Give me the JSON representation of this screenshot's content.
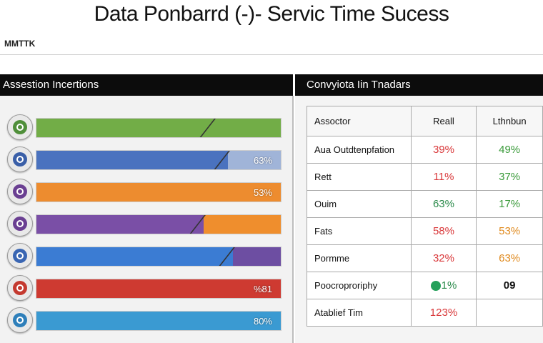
{
  "header": {
    "title": "Data Ponbarrd (-)- Servic Time Sucess",
    "subtitle": "MMTTK"
  },
  "left_panel": {
    "title": "Assestion Incertions",
    "bars": [
      {
        "fill_color": "#72ad47",
        "next_color": "#72ad47",
        "fill_fraction": 0.72,
        "label": "",
        "icon_color": "#4f8f3a",
        "icon": "chart-icon"
      },
      {
        "fill_color": "#4a72bf",
        "next_color": "#a0b4d8",
        "fill_fraction": 0.78,
        "label": "63%",
        "icon_color": "#3a5fa8",
        "icon": "target-icon"
      },
      {
        "fill_color": "#ed8c2f",
        "next_color": "#ed8c2f",
        "fill_fraction": 1.0,
        "label": "53%",
        "icon_color": "#6a3f92",
        "icon": "people-icon"
      },
      {
        "fill_color": "#7a4fa6",
        "next_color": "#ef8e2d",
        "fill_fraction": 0.68,
        "label": "",
        "icon_color": "#6a3f92",
        "icon": "gear-icon"
      },
      {
        "fill_color": "#3b7cd3",
        "next_color": "#6d4ea2",
        "fill_fraction": 0.8,
        "label": "",
        "icon_color": "#3a66b3",
        "icon": "clock-icon"
      },
      {
        "fill_color": "#ce3a31",
        "next_color": "#ce3a31",
        "fill_fraction": 1.0,
        "label": "%81",
        "icon_color": "#c43a30",
        "icon": "shield-icon"
      },
      {
        "fill_color": "#3a9ad2",
        "next_color": "#3a9ad2",
        "fill_fraction": 1.0,
        "label": "80%",
        "icon_color": "#2e7fba",
        "icon": "globe-icon"
      }
    ]
  },
  "right_panel": {
    "title": "Convyiota Iin Tnadars",
    "table": {
      "headers": [
        "Assoctor",
        "Reall",
        "Lthnbun"
      ],
      "rows": [
        {
          "label": "Aua Outdtenpfation",
          "a": "39%",
          "a_color": "#d9383a",
          "b": "49%",
          "b_color": "#3a9a3a",
          "a_pill": false
        },
        {
          "label": "Rett",
          "a": "11%",
          "a_color": "#d9383a",
          "b": "37%",
          "b_color": "#3a9a3a",
          "a_pill": false
        },
        {
          "label": "Ouim",
          "a": "63%",
          "a_color": "#2a8a4a",
          "b": "17%",
          "b_color": "#3a9a3a",
          "a_pill": false
        },
        {
          "label": "Fats",
          "a": "58%",
          "a_color": "#d9383a",
          "b": "53%",
          "b_color": "#e08a1e",
          "a_pill": false
        },
        {
          "label": "Pormme",
          "a": "32%",
          "a_color": "#d9383a",
          "b": "63%",
          "b_color": "#e08a1e",
          "a_pill": false
        },
        {
          "label": "Poocroproriphy",
          "a": "1%",
          "a_color": "#2a8a4a",
          "b": "09",
          "b_color": "#111111",
          "a_pill": true
        },
        {
          "label": "Atablief Tim",
          "a": "123%",
          "a_color": "#d9383a",
          "b": "",
          "b_color": "#111111",
          "a_pill": false
        }
      ]
    }
  }
}
